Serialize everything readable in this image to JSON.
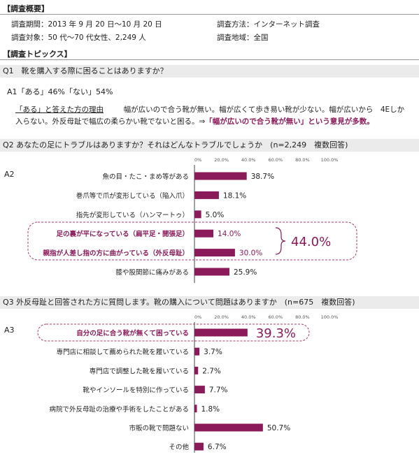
{
  "overview": {
    "heading": "【調査概要】",
    "period": "調査期間：2013 年 9 月 20 日〜10 月 20 日",
    "method": "調査方法：インターネット調査",
    "target": "調査対象：50 代〜70 代女性、2,249 人",
    "region": "調査地域：全国"
  },
  "topics": {
    "heading": "【調査トピックス】"
  },
  "q1": {
    "question": "Q1　靴を購入する際に困ることはありますか？",
    "answer": "A1「ある」46%「ない」54%",
    "reason_label": "「ある」と答えた方の理由",
    "reason_text_1": "幅が広いので合う靴が無い。幅が広くて歩き易い靴が少ない。幅が広いから　4Eしか",
    "reason_text_2": "入らない。外反母趾で幅広の柔らかい靴でないと困る。⇒",
    "reason_highlight": "「幅が広いので合う靴が無い」",
    "reason_tail": "という意見が多数。"
  },
  "q2": {
    "question": "Q2 あなたの足にトラブルはありますか？それはどんなトラブルでしょうか　(n=2,249　複数回答)",
    "answer_label": "A2",
    "group_total": "44.0%"
  },
  "q3": {
    "question": "Q3 外反母趾と回答された方に質問します。靴の購入について問題はありますか　(n=675　複数回答)",
    "answer_label": "A3"
  },
  "chart_data": [
    {
      "type": "bar",
      "orientation": "horizontal",
      "categories": [
        "魚の目・たこ・まめ等がある",
        "巻爪等で爪が変形している（陥入爪）",
        "指先が変形している（ハンマートゥ）",
        "足の裏が平になっている（扁平足・開張足）",
        "親指が人差し指の方に曲がっている（外反母趾）",
        "膝や股関節に痛みがある"
      ],
      "values": [
        38.7,
        18.1,
        5.0,
        14.0,
        30.0,
        25.9
      ],
      "value_labels": [
        "38.7%",
        "18.1%",
        "5.0%",
        "14.0%",
        "30.0%",
        "25.9%"
      ],
      "xlim": [
        0,
        100
      ],
      "ticks": [
        "0%",
        "20.0%",
        "40.0%",
        "60.0%",
        "80.0%",
        "100.0%"
      ],
      "highlighted": [
        3,
        4
      ],
      "bar_color": "#8b1a5a"
    },
    {
      "type": "bar",
      "orientation": "horizontal",
      "categories": [
        "自分の足に合う靴が無くて困っている",
        "専門店に相談して薦められた靴を履いている",
        "専門店で調整した靴を履いている",
        "靴やインソールを特別に作っている",
        "病院で外反母趾の治療や手術をしたことがある",
        "市販の靴で問題ない",
        "その他"
      ],
      "values": [
        39.3,
        3.7,
        2.7,
        7.7,
        1.8,
        50.7,
        6.7
      ],
      "value_labels": [
        "39.3%",
        "3.7%",
        "2.7%",
        "7.7%",
        "1.8%",
        "50.7%",
        "6.7%"
      ],
      "xlim": [
        0,
        100
      ],
      "ticks": [
        "0%",
        "20.0%",
        "40.0%",
        "60.0%",
        "80.0%",
        "100.0%"
      ],
      "highlighted": [
        0
      ],
      "bar_color": "#8b1a5a"
    }
  ]
}
